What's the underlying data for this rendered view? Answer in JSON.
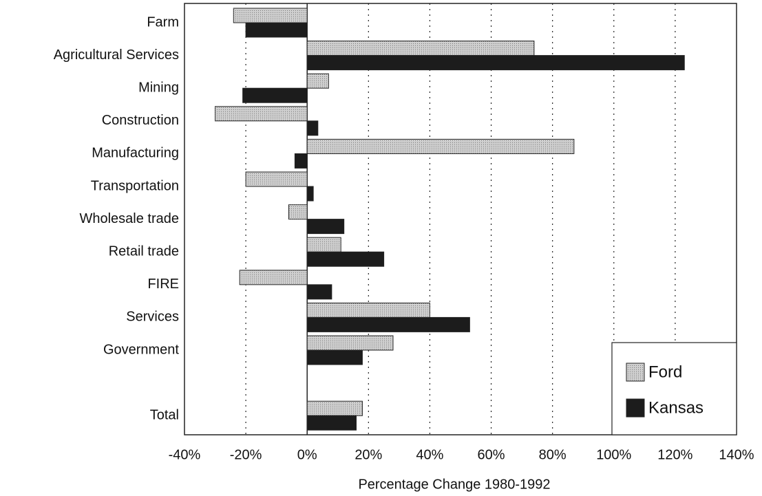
{
  "chart_data": {
    "type": "barh",
    "x_label": "Percentage Change 1980-1992",
    "categories": [
      "Farm",
      "Agricultural Services",
      "Mining",
      "Construction",
      "Manufacturing",
      "Transportation",
      "Wholesale trade",
      "Retail trade",
      "FIRE",
      "Services",
      "Government",
      null,
      "Total"
    ],
    "series": [
      {
        "name": "Ford",
        "color": "#cfcfcf",
        "values": [
          -24,
          74,
          7,
          -30,
          87,
          -20,
          -6,
          11,
          -22,
          40,
          28,
          null,
          18
        ]
      },
      {
        "name": "Kansas",
        "color": "#1c1c1c",
        "values": [
          -20,
          123,
          -21,
          3.5,
          -4,
          2,
          12,
          25,
          8,
          53,
          18,
          null,
          16
        ]
      }
    ],
    "xlim": [
      -40,
      140
    ],
    "xticks": [
      {
        "value": -40,
        "label": "-40%"
      },
      {
        "value": -20,
        "label": "-20%"
      },
      {
        "value": 0,
        "label": "0%"
      },
      {
        "value": 20,
        "label": "20%"
      },
      {
        "value": 40,
        "label": "40%"
      },
      {
        "value": 60,
        "label": "60%"
      },
      {
        "value": 80,
        "label": "80%"
      },
      {
        "value": 100,
        "label": "100%"
      },
      {
        "value": 120,
        "label": "120%"
      },
      {
        "value": 140,
        "label": "140%"
      }
    ],
    "grid": true,
    "legend": "lower right"
  }
}
